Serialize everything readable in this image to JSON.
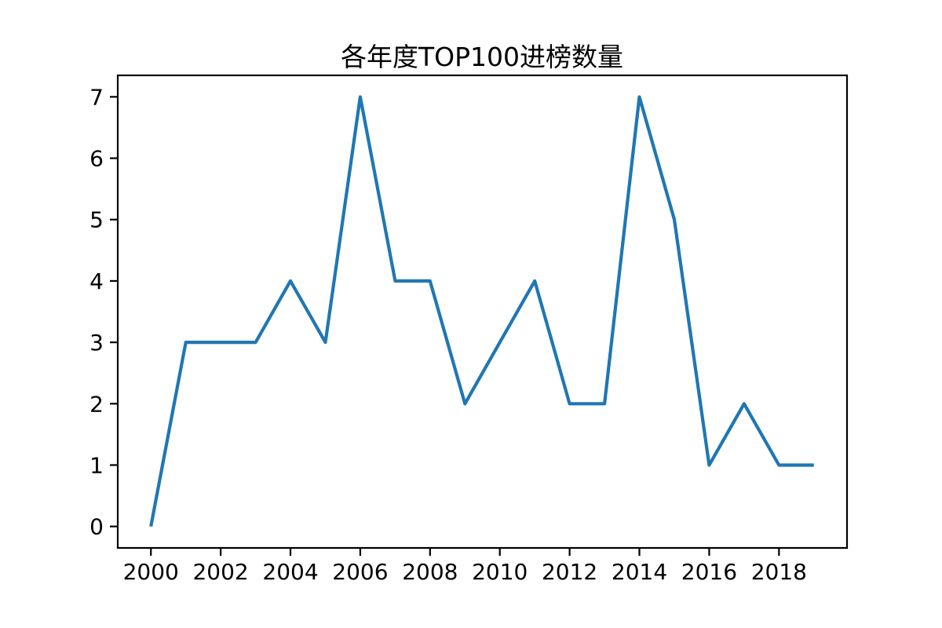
{
  "chart_data": {
    "type": "line",
    "title": "各年度TOP100进榜数量",
    "x": [
      2000,
      2001,
      2002,
      2003,
      2004,
      2005,
      2006,
      2007,
      2008,
      2009,
      2010,
      2011,
      2012,
      2013,
      2014,
      2015,
      2016,
      2017,
      2018,
      2019
    ],
    "values": [
      0,
      3,
      3,
      3,
      4,
      3,
      7,
      4,
      4,
      2,
      3,
      4,
      2,
      2,
      7,
      5,
      1,
      2,
      1,
      1
    ],
    "xlabel": "",
    "ylabel": "",
    "xticks": [
      2000,
      2002,
      2004,
      2006,
      2008,
      2010,
      2012,
      2014,
      2016,
      2018
    ],
    "yticks": [
      0,
      1,
      2,
      3,
      4,
      5,
      6,
      7
    ],
    "xlim": [
      1999.05,
      2019.95
    ],
    "ylim": [
      -0.35,
      7.35
    ],
    "grid": false,
    "legend": "none",
    "line_color": "#1f77b4",
    "axis_color": "#000000"
  }
}
